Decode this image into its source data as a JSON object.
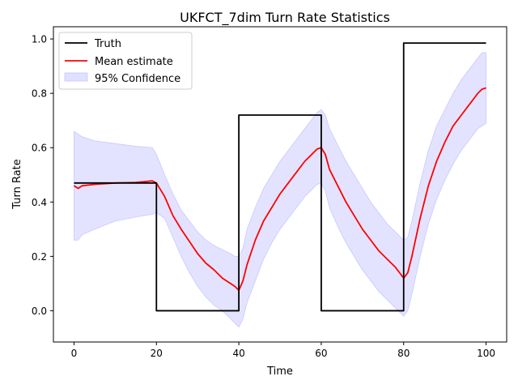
{
  "chart_data": {
    "type": "line",
    "title": "UKFCT_7dim Turn Rate Statistics",
    "xlabel": "Time",
    "ylabel": "Turn Rate",
    "xlim": [
      -5,
      105
    ],
    "ylim": [
      -0.115,
      1.045
    ],
    "xticks": [
      0,
      20,
      40,
      60,
      80,
      100
    ],
    "yticks": [
      0.0,
      0.2,
      0.4,
      0.6,
      0.8,
      1.0
    ],
    "xtick_labels": [
      "0",
      "20",
      "40",
      "60",
      "80",
      "100"
    ],
    "ytick_labels": [
      "0.0",
      "0.2",
      "0.4",
      "0.6",
      "0.8",
      "1.0"
    ],
    "grid": false,
    "legend_position": "top-left",
    "colors": {
      "truth": "#000000",
      "mean": "#ff0000",
      "confidence_fill": "#e0e0ff",
      "confidence_edge": "#c8c8ff"
    },
    "series": [
      {
        "name": "Truth",
        "x": [
          0,
          20,
          20,
          40,
          40,
          60,
          60,
          80,
          80,
          100
        ],
        "values": [
          0.47,
          0.47,
          0.0,
          0.0,
          0.72,
          0.72,
          0.0,
          0.0,
          0.985,
          0.985
        ]
      },
      {
        "name": "Mean estimate",
        "x": [
          0,
          1,
          2,
          5,
          10,
          15,
          19,
          20,
          22,
          24,
          26,
          28,
          30,
          32,
          34,
          36,
          38,
          39,
          40,
          41,
          42,
          44,
          46,
          48,
          50,
          52,
          54,
          56,
          58,
          59,
          60,
          61,
          62,
          64,
          66,
          68,
          70,
          72,
          74,
          76,
          78,
          79,
          80,
          81,
          82,
          84,
          86,
          88,
          90,
          92,
          94,
          96,
          98,
          99,
          100
        ],
        "values": [
          0.46,
          0.45,
          0.46,
          0.465,
          0.47,
          0.472,
          0.478,
          0.47,
          0.42,
          0.35,
          0.3,
          0.255,
          0.21,
          0.175,
          0.15,
          0.12,
          0.1,
          0.09,
          0.075,
          0.11,
          0.17,
          0.26,
          0.33,
          0.38,
          0.43,
          0.47,
          0.51,
          0.55,
          0.58,
          0.595,
          0.6,
          0.575,
          0.52,
          0.46,
          0.4,
          0.35,
          0.3,
          0.26,
          0.22,
          0.19,
          0.16,
          0.14,
          0.12,
          0.14,
          0.2,
          0.34,
          0.46,
          0.55,
          0.62,
          0.68,
          0.72,
          0.76,
          0.8,
          0.815,
          0.82
        ]
      },
      {
        "name": "95% Confidence",
        "x": [
          0,
          1,
          2,
          5,
          10,
          15,
          19,
          20,
          22,
          24,
          26,
          28,
          30,
          32,
          34,
          36,
          38,
          39,
          40,
          41,
          42,
          44,
          46,
          48,
          50,
          52,
          54,
          56,
          58,
          59,
          60,
          61,
          62,
          64,
          66,
          68,
          70,
          72,
          74,
          76,
          78,
          79,
          80,
          81,
          82,
          84,
          86,
          88,
          90,
          92,
          94,
          96,
          98,
          99,
          100
        ],
        "upper": [
          0.66,
          0.65,
          0.64,
          0.625,
          0.615,
          0.605,
          0.6,
          0.575,
          0.5,
          0.43,
          0.37,
          0.33,
          0.29,
          0.26,
          0.24,
          0.225,
          0.21,
          0.2,
          0.2,
          0.23,
          0.3,
          0.38,
          0.45,
          0.5,
          0.55,
          0.59,
          0.63,
          0.67,
          0.71,
          0.73,
          0.74,
          0.72,
          0.67,
          0.61,
          0.55,
          0.5,
          0.45,
          0.4,
          0.36,
          0.32,
          0.29,
          0.275,
          0.26,
          0.27,
          0.33,
          0.47,
          0.59,
          0.68,
          0.74,
          0.8,
          0.85,
          0.89,
          0.93,
          0.95,
          0.95
        ],
        "lower": [
          0.26,
          0.26,
          0.28,
          0.3,
          0.33,
          0.345,
          0.355,
          0.36,
          0.34,
          0.27,
          0.2,
          0.14,
          0.09,
          0.05,
          0.02,
          0.0,
          -0.03,
          -0.045,
          -0.06,
          -0.03,
          0.03,
          0.11,
          0.19,
          0.25,
          0.3,
          0.34,
          0.38,
          0.42,
          0.45,
          0.465,
          0.47,
          0.44,
          0.38,
          0.31,
          0.25,
          0.2,
          0.15,
          0.11,
          0.07,
          0.04,
          0.01,
          -0.005,
          -0.02,
          0.0,
          0.06,
          0.2,
          0.32,
          0.41,
          0.48,
          0.54,
          0.59,
          0.63,
          0.67,
          0.68,
          0.69
        ]
      }
    ]
  }
}
